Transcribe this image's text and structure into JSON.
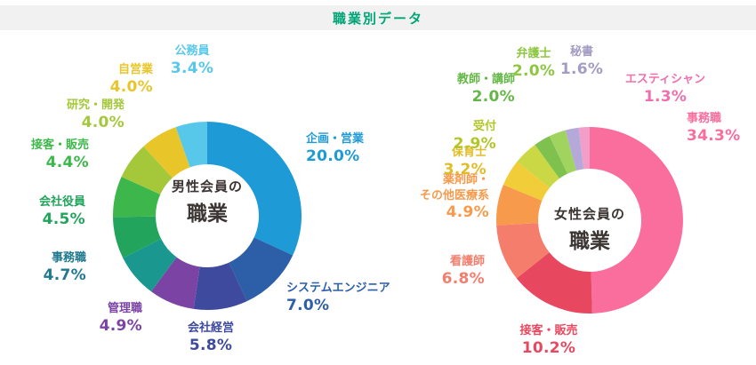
{
  "header": {
    "title": "職業別データ",
    "accent_color": "#00a576",
    "bar_background": "#f1f1f1"
  },
  "chart_data": [
    {
      "type": "pie",
      "subtype": "donut",
      "title": "男性会員の職業",
      "center_label": {
        "line1": "男性会員の",
        "line2": "職業"
      },
      "unit": "%",
      "start_angle_deg": 0,
      "direction": "clockwise",
      "segments": [
        {
          "label": "企画・営業",
          "value": 20.0,
          "color": "#1e9ad6"
        },
        {
          "label": "システムエンジニア",
          "value": 7.0,
          "color": "#2d5fa9"
        },
        {
          "label": "会社経営",
          "value": 5.8,
          "color": "#3e4a9e"
        },
        {
          "label": "管理職",
          "value": 4.9,
          "color": "#7b44a4"
        },
        {
          "label": "事務職",
          "value": 4.7,
          "color": "#1a988f",
          "label_color": "#20798f"
        },
        {
          "label": "会社役員",
          "value": 4.5,
          "color": "#23a45c"
        },
        {
          "label": "接客・販売",
          "value": 4.4,
          "color": "#3db74b"
        },
        {
          "label": "研究・開発",
          "value": 4.0,
          "color": "#a5c83b"
        },
        {
          "label": "自営業",
          "value": 4.0,
          "color": "#e8c629"
        },
        {
          "label": "公務員",
          "value": 3.4,
          "color": "#58c8ea"
        }
      ]
    },
    {
      "type": "pie",
      "subtype": "donut",
      "title": "女性会員の職業",
      "center_label": {
        "line1": "女性会員の",
        "line2": "職業"
      },
      "unit": "%",
      "start_angle_deg": 0,
      "direction": "clockwise",
      "segments": [
        {
          "label": "事務職",
          "value": 34.3,
          "color": "#fa6e9e"
        },
        {
          "label": "接客・販売",
          "value": 10.2,
          "color": "#e8485f"
        },
        {
          "label": "看護師",
          "value": 6.8,
          "color": "#f57d6c"
        },
        {
          "label": "薬剤師・その他医療系",
          "label_lines": [
            "薬剤師・",
            "その他医療系"
          ],
          "value": 4.9,
          "color": "#f79a4c"
        },
        {
          "label": "保育士",
          "value": 3.2,
          "color": "#f2cd3a",
          "label_color": "#e0bd28"
        },
        {
          "label": "受付",
          "value": 2.9,
          "color": "#c9d844",
          "label_color": "#b2c629"
        },
        {
          "label": "教師・講師",
          "value": 2.0,
          "color": "#7ec14f",
          "label_color": "#64b747"
        },
        {
          "label": "弁護士",
          "value": 2.0,
          "color": "#a0d45f",
          "label_color": "#8dc63f"
        },
        {
          "label": "秘書",
          "value": 1.6,
          "color": "#b4a9d8",
          "label_color": "#a49cc2"
        },
        {
          "label": "エスティシャン",
          "value": 1.3,
          "color": "#f19fc8",
          "label_color": "#f070ad"
        }
      ]
    }
  ]
}
